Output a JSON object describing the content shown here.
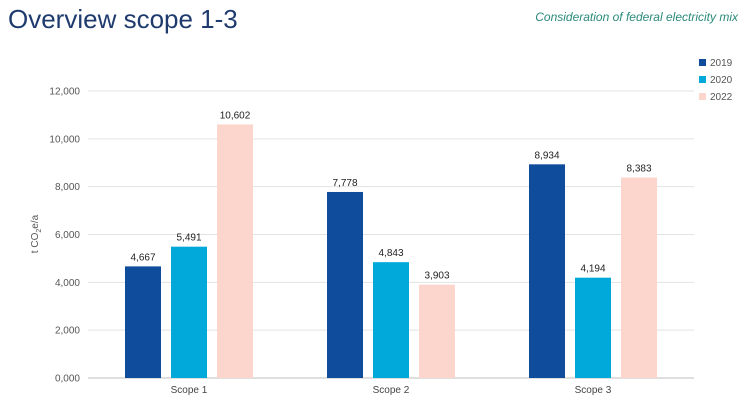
{
  "header": {
    "title": "Overview scope 1-3",
    "subtitle": "Consideration of federal electricity mix"
  },
  "chart_data": {
    "type": "bar",
    "title": "Overview scope 1-3",
    "subtitle": "Consideration of federal electricity mix",
    "xlabel": "",
    "ylabel_prefix": "t CO",
    "ylabel_sub": "2",
    "ylabel_suffix": "e/a",
    "categories": [
      "Scope 1",
      "Scope 2",
      "Scope 3"
    ],
    "ylim": [
      0,
      12000
    ],
    "yticks": [
      0,
      2000,
      4000,
      6000,
      8000,
      10000,
      12000
    ],
    "ytick_labels": [
      "0,000",
      "2,000",
      "4,000",
      "6,000",
      "8,000",
      "10,000",
      "12,000"
    ],
    "grid": true,
    "legend": "top-right",
    "series": [
      {
        "name": "2019",
        "color": "#0f4c9c",
        "values": [
          4667,
          7778,
          8934
        ],
        "labels": [
          "4,667",
          "7,778",
          "8,934"
        ]
      },
      {
        "name": "2020",
        "color": "#00a9d9",
        "values": [
          5491,
          4843,
          4194
        ],
        "labels": [
          "5,491",
          "4,843",
          "4,194"
        ]
      },
      {
        "name": "2022",
        "color": "#fcd6cc",
        "values": [
          10602,
          3903,
          8383
        ],
        "labels": [
          "10,602",
          "3,903",
          "8,383"
        ]
      }
    ]
  }
}
